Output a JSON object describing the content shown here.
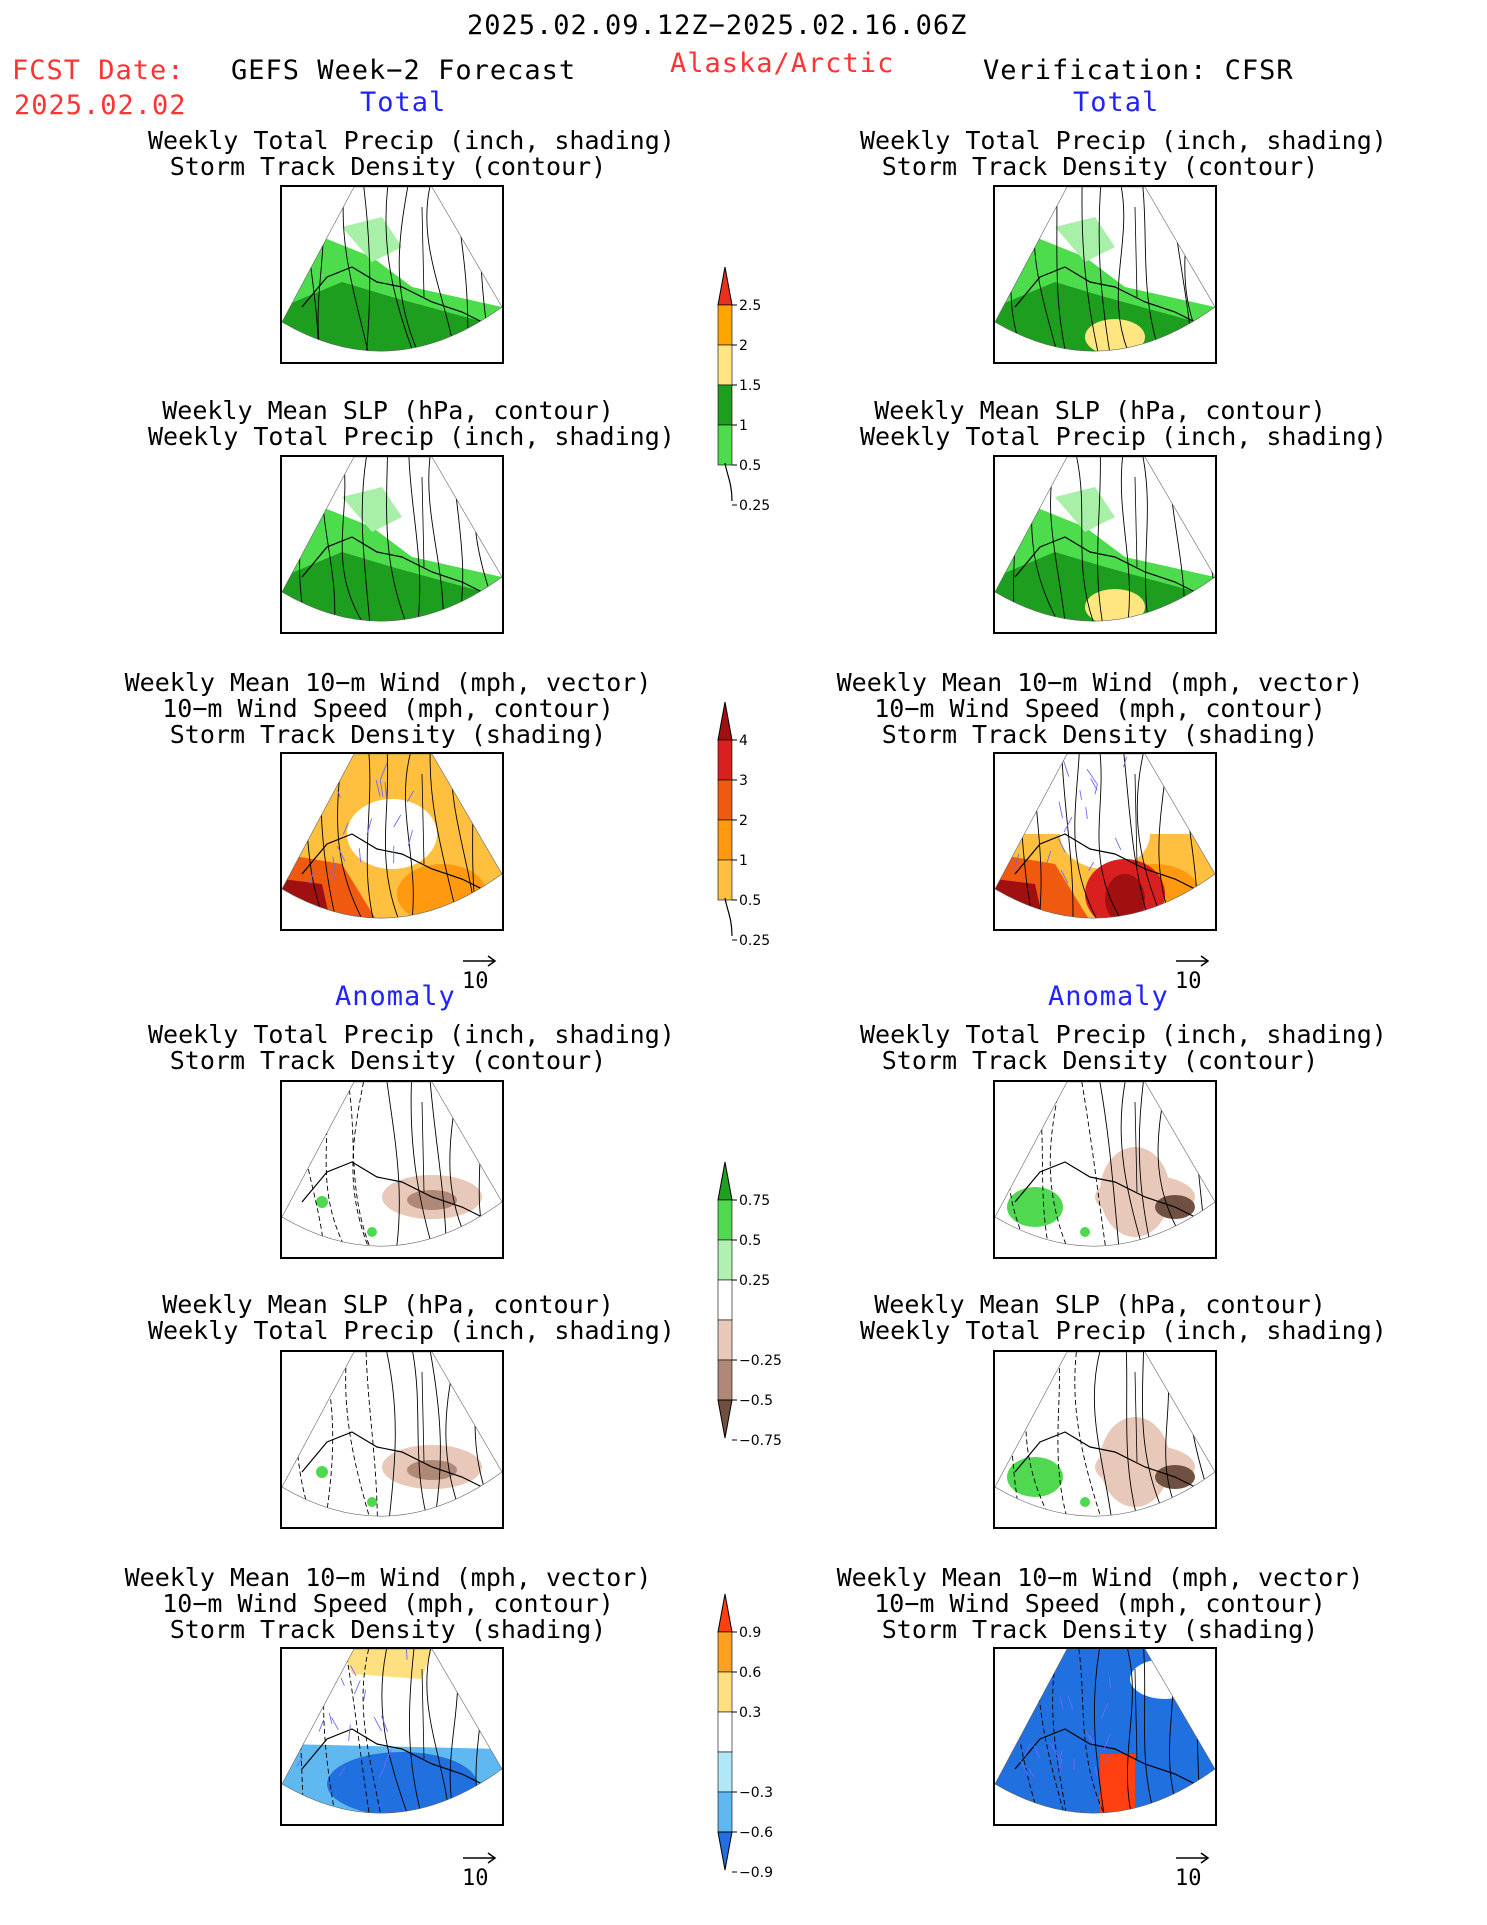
{
  "header": {
    "period": "2025.02.09.12Z−2025.02.16.06Z",
    "fcst_label": "FCST Date:",
    "fcst_date": "2025.02.02",
    "left_title": "GEFS Week−2 Forecast",
    "region": "Alaska/Arctic",
    "right_title": "Verification: CFSR"
  },
  "sections": {
    "total": "Total",
    "anomaly": "Anomaly"
  },
  "titles": {
    "precip_storm": [
      "Weekly Total Precip (inch, shading)",
      "Storm Track Density (contour)"
    ],
    "slp_precip": [
      "Weekly Mean SLP (hPa, contour)",
      "Weekly Total Precip (inch, shading)"
    ],
    "wind_storm": [
      "Weekly Mean 10−m Wind (mph, vector)",
      "10−m Wind Speed (mph, contour)",
      "Storm Track Density (shading)"
    ]
  },
  "vector_ref": "10",
  "colorbars": [
    {
      "id": "precip-total",
      "labels": [
        "2.5",
        "2",
        "1.5",
        "1",
        "0.5",
        "0.25"
      ],
      "colors": [
        "#e8321e",
        "#ffa500",
        "#ffe680",
        "#1e9e1e",
        "#4cdc4c",
        "#a8f0a8"
      ]
    },
    {
      "id": "storm-total",
      "labels": [
        "4",
        "3",
        "2",
        "1",
        "0.5",
        "0.25"
      ],
      "colors": [
        "#a01010",
        "#d82020",
        "#f05a10",
        "#ff9a10",
        "#ffc040",
        "#fff0a0"
      ]
    },
    {
      "id": "precip-anom",
      "labels": [
        "0.75",
        "0.5",
        "0.25",
        "−0.25",
        "−0.5",
        "−0.75"
      ],
      "colors": [
        "#20a020",
        "#50d850",
        "#b0f0b0",
        "#ffffff",
        "#e8c8b8",
        "#b08878",
        "#705040"
      ]
    },
    {
      "id": "storm-anom",
      "labels": [
        "0.9",
        "0.6",
        "0.3",
        "−0.3",
        "−0.6",
        "−0.9"
      ],
      "colors": [
        "#ff4010",
        "#ffa020",
        "#ffe080",
        "#ffffff",
        "#b0e8f8",
        "#60b8f0",
        "#2070e0"
      ]
    }
  ],
  "colors": {
    "accent_red": "#ff3333",
    "section_blue": "#2222ff",
    "vector": "#6a6aff"
  },
  "chart_data": [
    {
      "type": "heatmap",
      "panel": "forecast-total-precip",
      "title": [
        "Weekly Total Precip (inch, shading)",
        "Storm Track Density (contour)"
      ]
    },
    {
      "type": "heatmap",
      "panel": "verif-total-precip",
      "title": [
        "Weekly Total Precip (inch, shading)",
        "Storm Track Density (contour)"
      ]
    },
    {
      "type": "heatmap",
      "panel": "forecast-total-slp",
      "title": [
        "Weekly Mean SLP (hPa, contour)",
        "Weekly Total Precip (inch, shading)"
      ]
    },
    {
      "type": "heatmap",
      "panel": "verif-total-slp",
      "title": [
        "Weekly Mean SLP (hPa, contour)",
        "Weekly Total Precip (inch, shading)"
      ]
    },
    {
      "type": "heatmap",
      "panel": "forecast-total-wind",
      "title": [
        "Weekly Mean 10−m Wind (mph, vector)",
        "10−m Wind Speed (mph, contour)",
        "Storm Track Density (shading)"
      ]
    },
    {
      "type": "heatmap",
      "panel": "verif-total-wind",
      "title": [
        "Weekly Mean 10−m Wind (mph, vector)",
        "10−m Wind Speed (mph, contour)",
        "Storm Track Density (shading)"
      ]
    },
    {
      "type": "heatmap",
      "panel": "forecast-anom-precip",
      "title": [
        "Weekly Total Precip (inch, shading)",
        "Storm Track Density (contour)"
      ]
    },
    {
      "type": "heatmap",
      "panel": "verif-anom-precip",
      "title": [
        "Weekly Total Precip (inch, shading)",
        "Storm Track Density (contour)"
      ]
    },
    {
      "type": "heatmap",
      "panel": "forecast-anom-slp",
      "title": [
        "Weekly Mean SLP (hPa, contour)",
        "Weekly Total Precip (inch, shading)"
      ]
    },
    {
      "type": "heatmap",
      "panel": "verif-anom-slp",
      "title": [
        "Weekly Mean SLP (hPa, contour)",
        "Weekly Total Precip (inch, shading)"
      ]
    },
    {
      "type": "heatmap",
      "panel": "forecast-anom-wind",
      "title": [
        "Weekly Mean 10−m Wind (mph, vector)",
        "10−m Wind Speed (mph, contour)",
        "Storm Track Density (shading)"
      ]
    },
    {
      "type": "heatmap",
      "panel": "verif-anom-wind",
      "title": [
        "Weekly Mean 10−m Wind (mph, vector)",
        "10−m Wind Speed (mph, contour)",
        "Storm Track Density (shading)"
      ]
    }
  ]
}
